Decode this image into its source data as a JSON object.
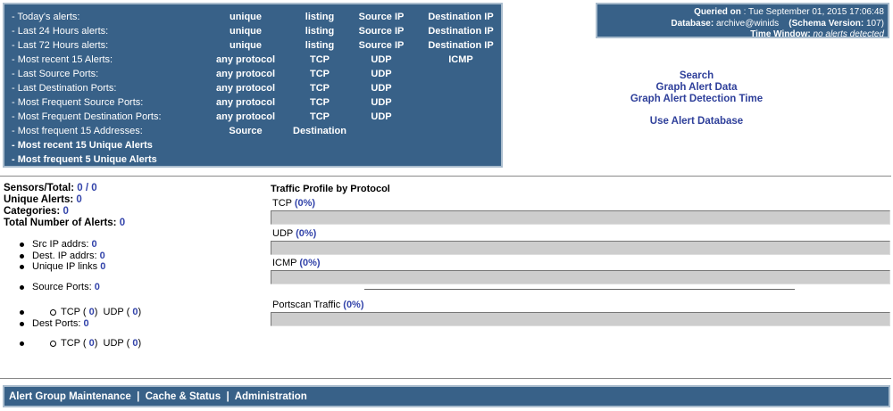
{
  "menu": {
    "rows": [
      {
        "label": "- Today's alerts:",
        "links": [
          "unique",
          "listing",
          "Source IP",
          "Destination IP"
        ]
      },
      {
        "label": "- Last 24 Hours alerts:",
        "links": [
          "unique",
          "listing",
          "Source IP",
          "Destination IP"
        ]
      },
      {
        "label": "- Last 72 Hours alerts:",
        "links": [
          "unique",
          "listing",
          "Source IP",
          "Destination IP"
        ]
      },
      {
        "label": "- Most recent 15 Alerts:",
        "links": [
          "any protocol",
          "TCP",
          "UDP",
          "ICMP"
        ]
      },
      {
        "label": "- Last Source Ports:",
        "links": [
          "any protocol",
          "TCP",
          "UDP"
        ]
      },
      {
        "label": "- Last Destination Ports:",
        "links": [
          "any protocol",
          "TCP",
          "UDP"
        ]
      },
      {
        "label": "- Most Frequent Source Ports:",
        "links": [
          "any protocol",
          "TCP",
          "UDP"
        ]
      },
      {
        "label": "- Most Frequent Destination Ports:",
        "links": [
          "any protocol",
          "TCP",
          "UDP"
        ]
      },
      {
        "label": "- Most frequent 15 Addresses:",
        "links": [
          "Source",
          "Destination"
        ]
      },
      {
        "label": "- Most recent 15 Unique Alerts",
        "links": []
      },
      {
        "label": "- Most frequent 5 Unique Alerts",
        "links": []
      }
    ]
  },
  "info": {
    "queried_label": "Queried on",
    "queried_value": " : Tue September 01, 2015 17:06:48",
    "db_label": "Database:",
    "db_value": " archive@winids",
    "schema_label": "(Schema Version:",
    "schema_value": " 107)",
    "tw_label": "Time Window:",
    "tw_value": " no alerts detected"
  },
  "links": {
    "search": "Search",
    "graph": "Graph Alert Data",
    "graph_time": "Graph Alert Detection Time",
    "use_db": "Use Alert Database"
  },
  "stats": {
    "sensors_label": "Sensors/Total:",
    "sensors": "0",
    "total": "0",
    "unique_label": "Unique Alerts:",
    "unique": "0",
    "categories_label": "Categories:",
    "categories": "0",
    "total_alerts_label": "Total Number of Alerts:",
    "total_alerts": "0",
    "src_ip_label": "Src IP addrs:",
    "src_ip": "0",
    "dst_ip_label": "Dest. IP addrs:",
    "dst_ip": "0",
    "links_label": "Unique IP links",
    "links_val": "0",
    "src_ports_label": "Source Ports:",
    "src_ports": "0",
    "dst_ports_label": "Dest Ports:",
    "dst_ports": "0",
    "tcp": "TCP",
    "udp": "UDP",
    "src_tcp": "0",
    "src_udp": "0",
    "dst_tcp": "0",
    "dst_udp": "0"
  },
  "traffic": {
    "title": "Traffic Profile by Protocol",
    "tcp_label": "TCP",
    "tcp": "(0%)",
    "tcp_pct": 0,
    "udp_label": "UDP",
    "udp": "(0%)",
    "udp_pct": 0,
    "icmp_label": "ICMP",
    "icmp": "(0%)",
    "icmp_pct": 0,
    "portscan_label": "Portscan Traffic",
    "portscan": "(0%)",
    "portscan_pct": 0
  },
  "footer": {
    "items": [
      "Alert Group Maintenance",
      "Cache & Status",
      "Administration"
    ],
    "sep": "|"
  },
  "colors": {
    "panel": "#386188",
    "link": "#2e3f9a"
  }
}
